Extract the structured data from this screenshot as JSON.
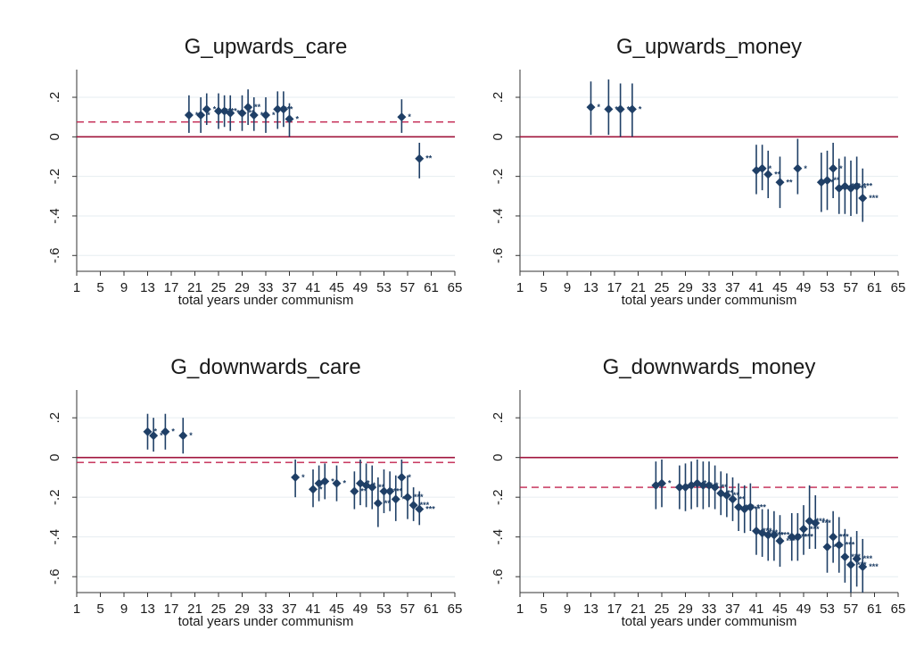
{
  "style": {
    "point_color": "#1f3f66",
    "zero_line_color": "#a0143c",
    "mean_line_color": "#c2234f",
    "grid_color": "#e6edf0",
    "axis_color": "#333333"
  },
  "chart_data": [
    {
      "type": "scatter",
      "title": "G_upwards_care",
      "xlabel": "total years under communism",
      "ylabel": "",
      "xlim": [
        1,
        65
      ],
      "ylim": [
        -0.68,
        0.34
      ],
      "xticks": [
        "1",
        "5",
        "9",
        "13",
        "17",
        "21",
        "25",
        "29",
        "33",
        "37",
        "41",
        "45",
        "49",
        "53",
        "57",
        "61",
        "65"
      ],
      "yticks": [
        ".2",
        "0",
        "-.2",
        "-.4",
        "-.6"
      ],
      "ytick_values": [
        0.2,
        0,
        -0.2,
        -0.4,
        -0.6
      ],
      "zero_line": 0,
      "mean_line": 0.075,
      "points": [
        {
          "x": 20,
          "y": 0.11,
          "lo": 0.02,
          "hi": 0.21,
          "sig": "*"
        },
        {
          "x": 22,
          "y": 0.11,
          "lo": 0.02,
          "hi": 0.2,
          "sig": "*"
        },
        {
          "x": 23,
          "y": 0.14,
          "lo": 0.06,
          "hi": 0.22,
          "sig": "*"
        },
        {
          "x": 25,
          "y": 0.13,
          "lo": 0.04,
          "hi": 0.22,
          "sig": "**"
        },
        {
          "x": 26,
          "y": 0.13,
          "lo": 0.05,
          "hi": 0.21,
          "sig": "**"
        },
        {
          "x": 27,
          "y": 0.12,
          "lo": 0.03,
          "hi": 0.21,
          "sig": "**"
        },
        {
          "x": 29,
          "y": 0.12,
          "lo": 0.03,
          "hi": 0.21,
          "sig": "**"
        },
        {
          "x": 30,
          "y": 0.15,
          "lo": 0.06,
          "hi": 0.24,
          "sig": "**"
        },
        {
          "x": 31,
          "y": 0.11,
          "lo": 0.03,
          "hi": 0.2,
          "sig": "**"
        },
        {
          "x": 33,
          "y": 0.11,
          "lo": 0.02,
          "hi": 0.2,
          "sig": "*"
        },
        {
          "x": 35,
          "y": 0.14,
          "lo": 0.04,
          "hi": 0.23,
          "sig": "**"
        },
        {
          "x": 36,
          "y": 0.14,
          "lo": 0.05,
          "hi": 0.23,
          "sig": "*"
        },
        {
          "x": 37,
          "y": 0.09,
          "lo": 0.0,
          "hi": 0.17,
          "sig": "*"
        },
        {
          "x": 56,
          "y": 0.1,
          "lo": 0.02,
          "hi": 0.19,
          "sig": "*"
        },
        {
          "x": 59,
          "y": -0.11,
          "lo": -0.21,
          "hi": -0.03,
          "sig": "**"
        }
      ]
    },
    {
      "type": "scatter",
      "title": "G_upwards_money",
      "xlabel": "total years under communism",
      "ylabel": "",
      "xlim": [
        1,
        65
      ],
      "ylim": [
        -0.68,
        0.34
      ],
      "xticks": [
        "1",
        "5",
        "9",
        "13",
        "17",
        "21",
        "25",
        "29",
        "33",
        "37",
        "41",
        "45",
        "49",
        "53",
        "57",
        "61",
        "65"
      ],
      "yticks": [
        ".2",
        "0",
        "-.2",
        "-.4",
        "-.6"
      ],
      "ytick_values": [
        0.2,
        0,
        -0.2,
        -0.4,
        -0.6
      ],
      "zero_line": 0,
      "mean_line": null,
      "points": [
        {
          "x": 13,
          "y": 0.15,
          "lo": 0.01,
          "hi": 0.28,
          "sig": "*"
        },
        {
          "x": 16,
          "y": 0.14,
          "lo": 0.01,
          "hi": 0.29,
          "sig": "*"
        },
        {
          "x": 18,
          "y": 0.14,
          "lo": 0.0,
          "hi": 0.27,
          "sig": "*"
        },
        {
          "x": 20,
          "y": 0.14,
          "lo": 0.0,
          "hi": 0.27,
          "sig": "*"
        },
        {
          "x": 41,
          "y": -0.17,
          "lo": -0.29,
          "hi": -0.04,
          "sig": "*"
        },
        {
          "x": 42,
          "y": -0.16,
          "lo": -0.27,
          "hi": -0.04,
          "sig": "*"
        },
        {
          "x": 43,
          "y": -0.19,
          "lo": -0.31,
          "hi": -0.07,
          "sig": "**"
        },
        {
          "x": 45,
          "y": -0.23,
          "lo": -0.36,
          "hi": -0.1,
          "sig": "**"
        },
        {
          "x": 48,
          "y": -0.16,
          "lo": -0.29,
          "hi": -0.01,
          "sig": "*"
        },
        {
          "x": 52,
          "y": -0.23,
          "lo": -0.38,
          "hi": -0.08,
          "sig": "**"
        },
        {
          "x": 53,
          "y": -0.22,
          "lo": -0.37,
          "hi": -0.07,
          "sig": "**"
        },
        {
          "x": 54,
          "y": -0.16,
          "lo": -0.31,
          "hi": -0.03,
          "sig": "*"
        },
        {
          "x": 55,
          "y": -0.26,
          "lo": -0.39,
          "hi": -0.11,
          "sig": "***"
        },
        {
          "x": 56,
          "y": -0.25,
          "lo": -0.39,
          "hi": -0.1,
          "sig": "***"
        },
        {
          "x": 57,
          "y": -0.26,
          "lo": -0.4,
          "hi": -0.12,
          "sig": "***"
        },
        {
          "x": 58,
          "y": -0.25,
          "lo": -0.39,
          "hi": -0.1,
          "sig": "***"
        },
        {
          "x": 59,
          "y": -0.31,
          "lo": -0.43,
          "hi": -0.16,
          "sig": "***"
        }
      ]
    },
    {
      "type": "scatter",
      "title": "G_downwards_care",
      "xlabel": "total years under communism",
      "ylabel": "",
      "xlim": [
        1,
        65
      ],
      "ylim": [
        -0.68,
        0.34
      ],
      "xticks": [
        "1",
        "5",
        "9",
        "13",
        "17",
        "21",
        "25",
        "29",
        "33",
        "37",
        "41",
        "45",
        "49",
        "53",
        "57",
        "61",
        "65"
      ],
      "yticks": [
        ".2",
        "0",
        "-.2",
        "-.4",
        "-.6"
      ],
      "ytick_values": [
        0.2,
        0,
        -0.2,
        -0.4,
        -0.6
      ],
      "zero_line": 0,
      "mean_line": -0.025,
      "points": [
        {
          "x": 13,
          "y": 0.13,
          "lo": 0.04,
          "hi": 0.22,
          "sig": "*"
        },
        {
          "x": 14,
          "y": 0.11,
          "lo": 0.03,
          "hi": 0.2,
          "sig": "*"
        },
        {
          "x": 16,
          "y": 0.13,
          "lo": 0.04,
          "hi": 0.22,
          "sig": "*"
        },
        {
          "x": 19,
          "y": 0.11,
          "lo": 0.02,
          "hi": 0.2,
          "sig": "*"
        },
        {
          "x": 38,
          "y": -0.1,
          "lo": -0.2,
          "hi": -0.01,
          "sig": "*"
        },
        {
          "x": 41,
          "y": -0.16,
          "lo": -0.25,
          "hi": -0.06,
          "sig": "*"
        },
        {
          "x": 42,
          "y": -0.13,
          "lo": -0.22,
          "hi": -0.04,
          "sig": "*"
        },
        {
          "x": 43,
          "y": -0.12,
          "lo": -0.21,
          "hi": -0.03,
          "sig": "*"
        },
        {
          "x": 45,
          "y": -0.13,
          "lo": -0.22,
          "hi": -0.04,
          "sig": "*"
        },
        {
          "x": 48,
          "y": -0.17,
          "lo": -0.26,
          "hi": -0.07,
          "sig": "**"
        },
        {
          "x": 49,
          "y": -0.13,
          "lo": -0.24,
          "hi": -0.01,
          "sig": "*"
        },
        {
          "x": 50,
          "y": -0.14,
          "lo": -0.25,
          "hi": -0.03,
          "sig": "*"
        },
        {
          "x": 51,
          "y": -0.15,
          "lo": -0.26,
          "hi": -0.04,
          "sig": "**"
        },
        {
          "x": 52,
          "y": -0.23,
          "lo": -0.35,
          "hi": -0.1,
          "sig": "**"
        },
        {
          "x": 53,
          "y": -0.17,
          "lo": -0.28,
          "hi": -0.06,
          "sig": "**"
        },
        {
          "x": 54,
          "y": -0.17,
          "lo": -0.27,
          "hi": -0.07,
          "sig": "**"
        },
        {
          "x": 55,
          "y": -0.21,
          "lo": -0.32,
          "hi": -0.09,
          "sig": "**"
        },
        {
          "x": 56,
          "y": -0.1,
          "lo": -0.2,
          "hi": -0.01,
          "sig": "*"
        },
        {
          "x": 57,
          "y": -0.2,
          "lo": -0.31,
          "hi": -0.09,
          "sig": "***"
        },
        {
          "x": 58,
          "y": -0.24,
          "lo": -0.32,
          "hi": -0.15,
          "sig": "***"
        },
        {
          "x": 59,
          "y": -0.26,
          "lo": -0.34,
          "hi": -0.17,
          "sig": "***"
        }
      ]
    },
    {
      "type": "scatter",
      "title": "G_downwards_money",
      "xlabel": "total years under communism",
      "ylabel": "",
      "xlim": [
        1,
        65
      ],
      "ylim": [
        -0.68,
        0.34
      ],
      "xticks": [
        "1",
        "5",
        "9",
        "13",
        "17",
        "21",
        "25",
        "29",
        "33",
        "37",
        "41",
        "45",
        "49",
        "53",
        "57",
        "61",
        "65"
      ],
      "yticks": [
        ".2",
        "0",
        "-.2",
        "-.4",
        "-.6"
      ],
      "ytick_values": [
        0.2,
        0,
        -0.2,
        -0.4,
        -0.6
      ],
      "zero_line": 0,
      "mean_line": -0.15,
      "points": [
        {
          "x": 24,
          "y": -0.14,
          "lo": -0.26,
          "hi": -0.02,
          "sig": "*"
        },
        {
          "x": 25,
          "y": -0.13,
          "lo": -0.25,
          "hi": -0.01,
          "sig": "*"
        },
        {
          "x": 28,
          "y": -0.15,
          "lo": -0.26,
          "hi": -0.04,
          "sig": "*"
        },
        {
          "x": 29,
          "y": -0.15,
          "lo": -0.27,
          "hi": -0.03,
          "sig": "*"
        },
        {
          "x": 30,
          "y": -0.14,
          "lo": -0.26,
          "hi": -0.02,
          "sig": "*"
        },
        {
          "x": 31,
          "y": -0.13,
          "lo": -0.25,
          "hi": -0.01,
          "sig": "*"
        },
        {
          "x": 32,
          "y": -0.14,
          "lo": -0.26,
          "hi": -0.02,
          "sig": "*"
        },
        {
          "x": 33,
          "y": -0.14,
          "lo": -0.25,
          "hi": -0.02,
          "sig": "*"
        },
        {
          "x": 34,
          "y": -0.15,
          "lo": -0.26,
          "hi": -0.04,
          "sig": "**"
        },
        {
          "x": 35,
          "y": -0.18,
          "lo": -0.29,
          "hi": -0.07,
          "sig": "**"
        },
        {
          "x": 36,
          "y": -0.19,
          "lo": -0.3,
          "hi": -0.08,
          "sig": "**"
        },
        {
          "x": 37,
          "y": -0.21,
          "lo": -0.32,
          "hi": -0.1,
          "sig": "**"
        },
        {
          "x": 38,
          "y": -0.25,
          "lo": -0.37,
          "hi": -0.13,
          "sig": "***"
        },
        {
          "x": 39,
          "y": -0.26,
          "lo": -0.38,
          "hi": -0.14,
          "sig": "***"
        },
        {
          "x": 40,
          "y": -0.25,
          "lo": -0.37,
          "hi": -0.13,
          "sig": "***"
        },
        {
          "x": 41,
          "y": -0.37,
          "lo": -0.49,
          "hi": -0.25,
          "sig": "***"
        },
        {
          "x": 42,
          "y": -0.38,
          "lo": -0.5,
          "hi": -0.26,
          "sig": "***"
        },
        {
          "x": 43,
          "y": -0.39,
          "lo": -0.52,
          "hi": -0.26,
          "sig": "***"
        },
        {
          "x": 44,
          "y": -0.39,
          "lo": -0.52,
          "hi": -0.27,
          "sig": "***"
        },
        {
          "x": 45,
          "y": -0.42,
          "lo": -0.55,
          "hi": -0.29,
          "sig": "***"
        },
        {
          "x": 47,
          "y": -0.4,
          "lo": -0.52,
          "hi": -0.28,
          "sig": "***"
        },
        {
          "x": 48,
          "y": -0.4,
          "lo": -0.52,
          "hi": -0.28,
          "sig": "***"
        },
        {
          "x": 49,
          "y": -0.36,
          "lo": -0.49,
          "hi": -0.24,
          "sig": "***"
        },
        {
          "x": 50,
          "y": -0.32,
          "lo": -0.46,
          "hi": -0.14,
          "sig": "***"
        },
        {
          "x": 51,
          "y": -0.33,
          "lo": -0.46,
          "hi": -0.19,
          "sig": "***"
        },
        {
          "x": 53,
          "y": -0.45,
          "lo": -0.58,
          "hi": -0.31,
          "sig": "***"
        },
        {
          "x": 54,
          "y": -0.4,
          "lo": -0.53,
          "hi": -0.27,
          "sig": "***"
        },
        {
          "x": 55,
          "y": -0.44,
          "lo": -0.58,
          "hi": -0.3,
          "sig": "***"
        },
        {
          "x": 56,
          "y": -0.5,
          "lo": -0.63,
          "hi": -0.36,
          "sig": "***"
        },
        {
          "x": 57,
          "y": -0.54,
          "lo": -0.68,
          "hi": -0.4,
          "sig": "***"
        },
        {
          "x": 58,
          "y": -0.51,
          "lo": -0.65,
          "hi": -0.37,
          "sig": "***"
        },
        {
          "x": 59,
          "y": -0.55,
          "lo": -0.68,
          "hi": -0.41,
          "sig": "***"
        }
      ]
    }
  ]
}
